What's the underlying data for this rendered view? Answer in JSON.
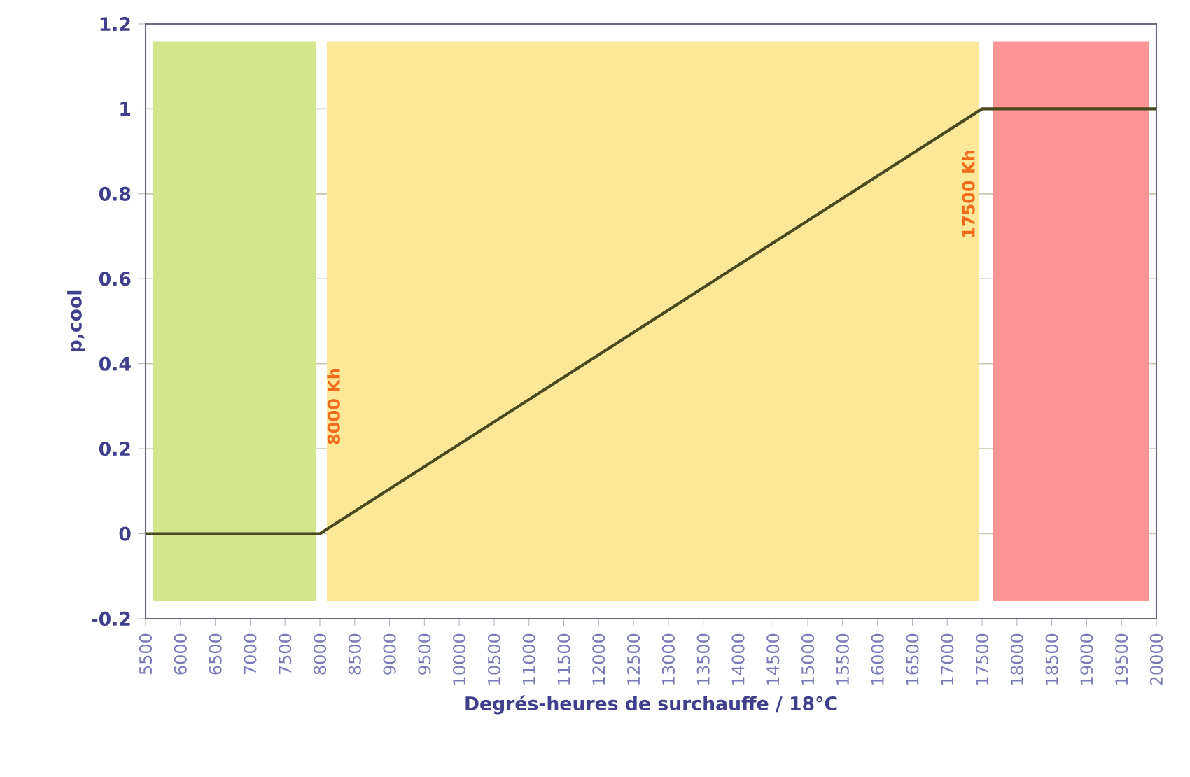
{
  "chart_data": {
    "type": "line",
    "xlabel": "Degrés-heures de surchauffe / 18°C",
    "ylabel": "p,cool",
    "x": [
      5500,
      8000,
      17500,
      20000
    ],
    "series": [
      {
        "color": "#4a4a1e",
        "values": [
          0,
          0,
          1,
          1
        ]
      }
    ],
    "xlim": [
      5500,
      20000
    ],
    "xticks": [
      5500,
      6000,
      6500,
      7000,
      7500,
      8000,
      8500,
      9000,
      9500,
      10000,
      10500,
      11000,
      11500,
      12000,
      12500,
      13000,
      13500,
      14000,
      14500,
      15000,
      15500,
      16000,
      16500,
      17000,
      17500,
      18000,
      18500,
      19000,
      19500,
      20000
    ],
    "ylim": [
      -0.2,
      1.2
    ],
    "yticks": [
      -0.2,
      0,
      0.2,
      0.4,
      0.6,
      0.8,
      1,
      1.2
    ],
    "grid": "y",
    "marker": "none",
    "line_style": "solid",
    "bands": [
      {
        "axis": "x",
        "from": 5600,
        "to": 7950,
        "color": "#d4e68c"
      },
      {
        "axis": "x",
        "from": 8100,
        "to": 17450,
        "color": "#fde89a"
      },
      {
        "axis": "x",
        "from": 17650,
        "to": 19900,
        "color": "#fd9595"
      }
    ],
    "annotations": [
      "8000 Kh",
      "17500 Kh"
    ]
  }
}
